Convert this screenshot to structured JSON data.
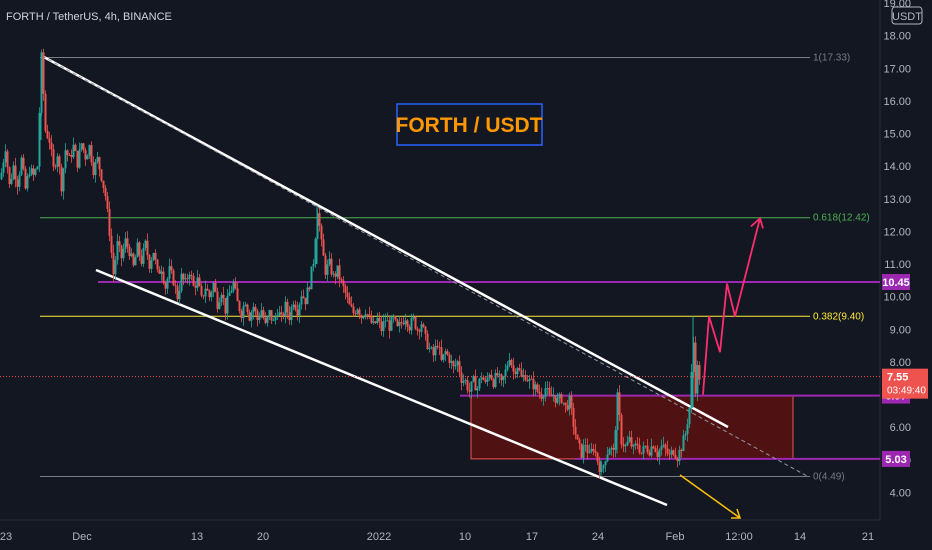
{
  "header": {
    "title": "FORTH / TetherUS, 4h, BINANCE"
  },
  "axis": {
    "currency": "USDT"
  },
  "annotation": {
    "text": "FORTH / USDT",
    "color": "#ff9800",
    "border": "#2962ff"
  },
  "colors": {
    "background": "#131722",
    "up": "#26a69a",
    "down": "#ef5350",
    "fib_grey": "#787b86",
    "fib_green": "#4caf50",
    "fib_yellow": "#ffeb3b",
    "purple": "#9c27b0",
    "projection": "#ff2d6f",
    "arrow": "#ffc107",
    "zone": "#5c1010"
  },
  "chart_data": {
    "type": "candlestick",
    "title": "FORTH / TetherUS, 4h, BINANCE",
    "ylabel": "USDT",
    "ylim": [
      3.5,
      19.0
    ],
    "y_ticks": [
      "4.00",
      "5.00",
      "6.00",
      "7.00",
      "8.00",
      "9.00",
      "10.00",
      "11.00",
      "12.00",
      "13.00",
      "14.00",
      "15.00",
      "16.00",
      "17.00",
      "18.00",
      "19.00"
    ],
    "x_ticks": [
      "23",
      "Dec",
      "13",
      "20",
      "2022",
      "10",
      "17",
      "24",
      "Feb",
      "12:00",
      "14",
      "21"
    ],
    "fib_levels": [
      {
        "label": "1(17.33)",
        "value": 17.33,
        "color": "#787b86"
      },
      {
        "label": "0.618(12.42)",
        "value": 12.42,
        "color": "#4caf50"
      },
      {
        "label": "0.382(9.40)",
        "value": 9.4,
        "color": "#ffeb3b"
      },
      {
        "label": "0(4.49)",
        "value": 4.49,
        "color": "#787b86"
      }
    ],
    "horizontal_levels": [
      {
        "label": "10.45",
        "value": 10.45,
        "color": "#9c27b0"
      },
      {
        "label": "6.97",
        "value": 6.97,
        "color": "#9c27b0"
      },
      {
        "label": "5.03",
        "value": 5.03,
        "color": "#9c27b0"
      }
    ],
    "current_price": {
      "value": "7.55",
      "countdown": "03:49:40",
      "color": "#ef5350"
    },
    "support_zone": {
      "from": 5.03,
      "to": 6.97
    },
    "projection_path": [
      7.0,
      9.4,
      8.3,
      10.4,
      9.4,
      12.4
    ],
    "price_path": [
      [
        0,
        13.6
      ],
      [
        5,
        14.6
      ],
      [
        9,
        13.4
      ],
      [
        13,
        14.0
      ],
      [
        17,
        13.5
      ],
      [
        21,
        14.2
      ],
      [
        25,
        13.3
      ],
      [
        29,
        13.9
      ],
      [
        33,
        13.7
      ],
      [
        37,
        14.0
      ],
      [
        41,
        17.33
      ],
      [
        45,
        15.1
      ],
      [
        49,
        14.8
      ],
      [
        53,
        13.9
      ],
      [
        57,
        14.4
      ],
      [
        61,
        13.4
      ],
      [
        65,
        14.5
      ],
      [
        69,
        14.2
      ],
      [
        73,
        14.6
      ],
      [
        77,
        14.1
      ],
      [
        81,
        14.7
      ],
      [
        85,
        14.3
      ],
      [
        89,
        14.6
      ],
      [
        93,
        13.9
      ],
      [
        97,
        14.2
      ],
      [
        101,
        13.7
      ],
      [
        105,
        13.1
      ],
      [
        109,
        12.0
      ],
      [
        113,
        10.7
      ],
      [
        117,
        11.6
      ],
      [
        121,
        11.2
      ],
      [
        125,
        11.7
      ],
      [
        129,
        11.4
      ],
      [
        133,
        10.9
      ],
      [
        137,
        11.5
      ],
      [
        141,
        11.1
      ],
      [
        145,
        11.6
      ],
      [
        149,
        11.0
      ],
      [
        153,
        11.4
      ],
      [
        157,
        10.7
      ],
      [
        161,
        10.9
      ],
      [
        165,
        10.3
      ],
      [
        169,
        10.8
      ],
      [
        173,
        10.5
      ],
      [
        177,
        10.0
      ],
      [
        181,
        10.6
      ],
      [
        185,
        10.4
      ],
      [
        189,
        10.8
      ],
      [
        193,
        10.3
      ],
      [
        197,
        10.5
      ],
      [
        201,
        9.9
      ],
      [
        205,
        10.3
      ],
      [
        209,
        10.0
      ],
      [
        213,
        10.4
      ],
      [
        217,
        9.8
      ],
      [
        221,
        10.2
      ],
      [
        225,
        9.6
      ],
      [
        229,
        10.1
      ],
      [
        233,
        10.4
      ],
      [
        237,
        9.8
      ],
      [
        241,
        9.5
      ],
      [
        245,
        9.9
      ],
      [
        249,
        9.4
      ],
      [
        253,
        9.7
      ],
      [
        257,
        9.3
      ],
      [
        261,
        9.6
      ],
      [
        265,
        9.1
      ],
      [
        269,
        9.5
      ],
      [
        273,
        9.2
      ],
      [
        277,
        9.6
      ],
      [
        281,
        9.3
      ],
      [
        285,
        9.7
      ],
      [
        289,
        9.4
      ],
      [
        293,
        9.9
      ],
      [
        297,
        9.6
      ],
      [
        301,
        10.1
      ],
      [
        305,
        9.9
      ],
      [
        309,
        10.4
      ],
      [
        313,
        11.1
      ],
      [
        317,
        12.7
      ],
      [
        321,
        11.6
      ],
      [
        325,
        10.8
      ],
      [
        329,
        11.0
      ],
      [
        333,
        10.6
      ],
      [
        337,
        10.8
      ],
      [
        341,
        10.4
      ],
      [
        345,
        10.1
      ],
      [
        349,
        9.7
      ],
      [
        353,
        9.5
      ],
      [
        357,
        9.7
      ],
      [
        361,
        9.4
      ],
      [
        365,
        9.6
      ],
      [
        369,
        9.3
      ],
      [
        373,
        9.1
      ],
      [
        377,
        9.3
      ],
      [
        381,
        9.0
      ],
      [
        385,
        9.3
      ],
      [
        389,
        9.1
      ],
      [
        393,
        9.3
      ],
      [
        397,
        9.0
      ],
      [
        401,
        9.2
      ],
      [
        405,
        9.4
      ],
      [
        409,
        9.1
      ],
      [
        413,
        9.3
      ],
      [
        417,
        9.0
      ],
      [
        421,
        9.2
      ],
      [
        425,
        8.7
      ],
      [
        429,
        8.4
      ],
      [
        433,
        8.2
      ],
      [
        437,
        8.6
      ],
      [
        441,
        8.0
      ],
      [
        445,
        8.3
      ],
      [
        449,
        8.1
      ],
      [
        453,
        7.8
      ],
      [
        457,
        8.0
      ],
      [
        461,
        7.5
      ],
      [
        465,
        7.4
      ],
      [
        469,
        7.1
      ],
      [
        473,
        7.4
      ],
      [
        477,
        7.2
      ],
      [
        481,
        7.6
      ],
      [
        485,
        7.3
      ],
      [
        489,
        7.7
      ],
      [
        493,
        7.4
      ],
      [
        497,
        7.6
      ],
      [
        501,
        7.3
      ],
      [
        505,
        7.7
      ],
      [
        509,
        8.2
      ],
      [
        513,
        7.7
      ],
      [
        517,
        7.9
      ],
      [
        521,
        7.5
      ],
      [
        525,
        7.6
      ],
      [
        529,
        7.4
      ],
      [
        533,
        7.3
      ],
      [
        537,
        7.1
      ],
      [
        541,
        7.0
      ],
      [
        545,
        7.2
      ],
      [
        549,
        6.9
      ],
      [
        553,
        7.0
      ],
      [
        557,
        6.8
      ],
      [
        561,
        6.9
      ],
      [
        565,
        6.6
      ],
      [
        569,
        6.8
      ],
      [
        573,
        6.1
      ],
      [
        577,
        5.5
      ],
      [
        581,
        5.2
      ],
      [
        585,
        5.5
      ],
      [
        589,
        5.1
      ],
      [
        593,
        5.4
      ],
      [
        597,
        5.0
      ],
      [
        601,
        4.6
      ],
      [
        605,
        5.1
      ],
      [
        609,
        5.4
      ],
      [
        613,
        5.2
      ],
      [
        617,
        6.9
      ],
      [
        621,
        5.6
      ],
      [
        625,
        5.4
      ],
      [
        629,
        5.6
      ],
      [
        633,
        5.3
      ],
      [
        637,
        5.5
      ],
      [
        641,
        5.2
      ],
      [
        645,
        5.4
      ],
      [
        649,
        5.3
      ],
      [
        653,
        5.5
      ],
      [
        657,
        5.2
      ],
      [
        661,
        5.4
      ],
      [
        665,
        5.3
      ],
      [
        669,
        5.1
      ],
      [
        673,
        5.3
      ],
      [
        677,
        5.1
      ],
      [
        681,
        5.4
      ],
      [
        685,
        5.8
      ],
      [
        689,
        6.6
      ],
      [
        693,
        8.6
      ],
      [
        695,
        7.2
      ],
      [
        697,
        7.8
      ],
      [
        699,
        7.55
      ]
    ]
  }
}
